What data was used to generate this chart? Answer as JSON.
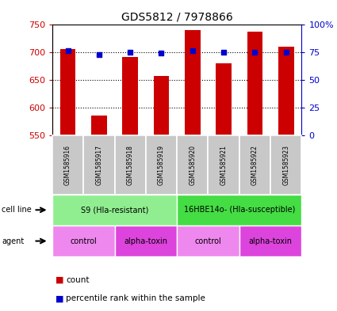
{
  "title": "GDS5812 / 7978866",
  "samples": [
    "GSM1585916",
    "GSM1585917",
    "GSM1585918",
    "GSM1585919",
    "GSM1585920",
    "GSM1585921",
    "GSM1585922",
    "GSM1585923"
  ],
  "counts": [
    706,
    585,
    691,
    657,
    740,
    679,
    736,
    709
  ],
  "percentiles": [
    76,
    73,
    75,
    74,
    76,
    75,
    75,
    75
  ],
  "ylim_left": [
    550,
    750
  ],
  "ylim_right": [
    0,
    100
  ],
  "yticks_left": [
    550,
    600,
    650,
    700,
    750
  ],
  "yticks_right": [
    0,
    25,
    50,
    75,
    100
  ],
  "yticklabels_right": [
    "0",
    "25",
    "50",
    "75",
    "100%"
  ],
  "bar_color": "#cc0000",
  "dot_color": "#0000cc",
  "bar_bottom": 550,
  "sample_box_color": "#c8c8c8",
  "cell_line_left_color": "#90ee90",
  "cell_line_right_color": "#44dd44",
  "agent_light_color": "#ee88ee",
  "agent_dark_color": "#dd44dd",
  "legend_count_color": "#cc0000",
  "legend_pct_color": "#0000cc",
  "left_axis_color": "#cc0000",
  "right_axis_color": "#0000cc"
}
